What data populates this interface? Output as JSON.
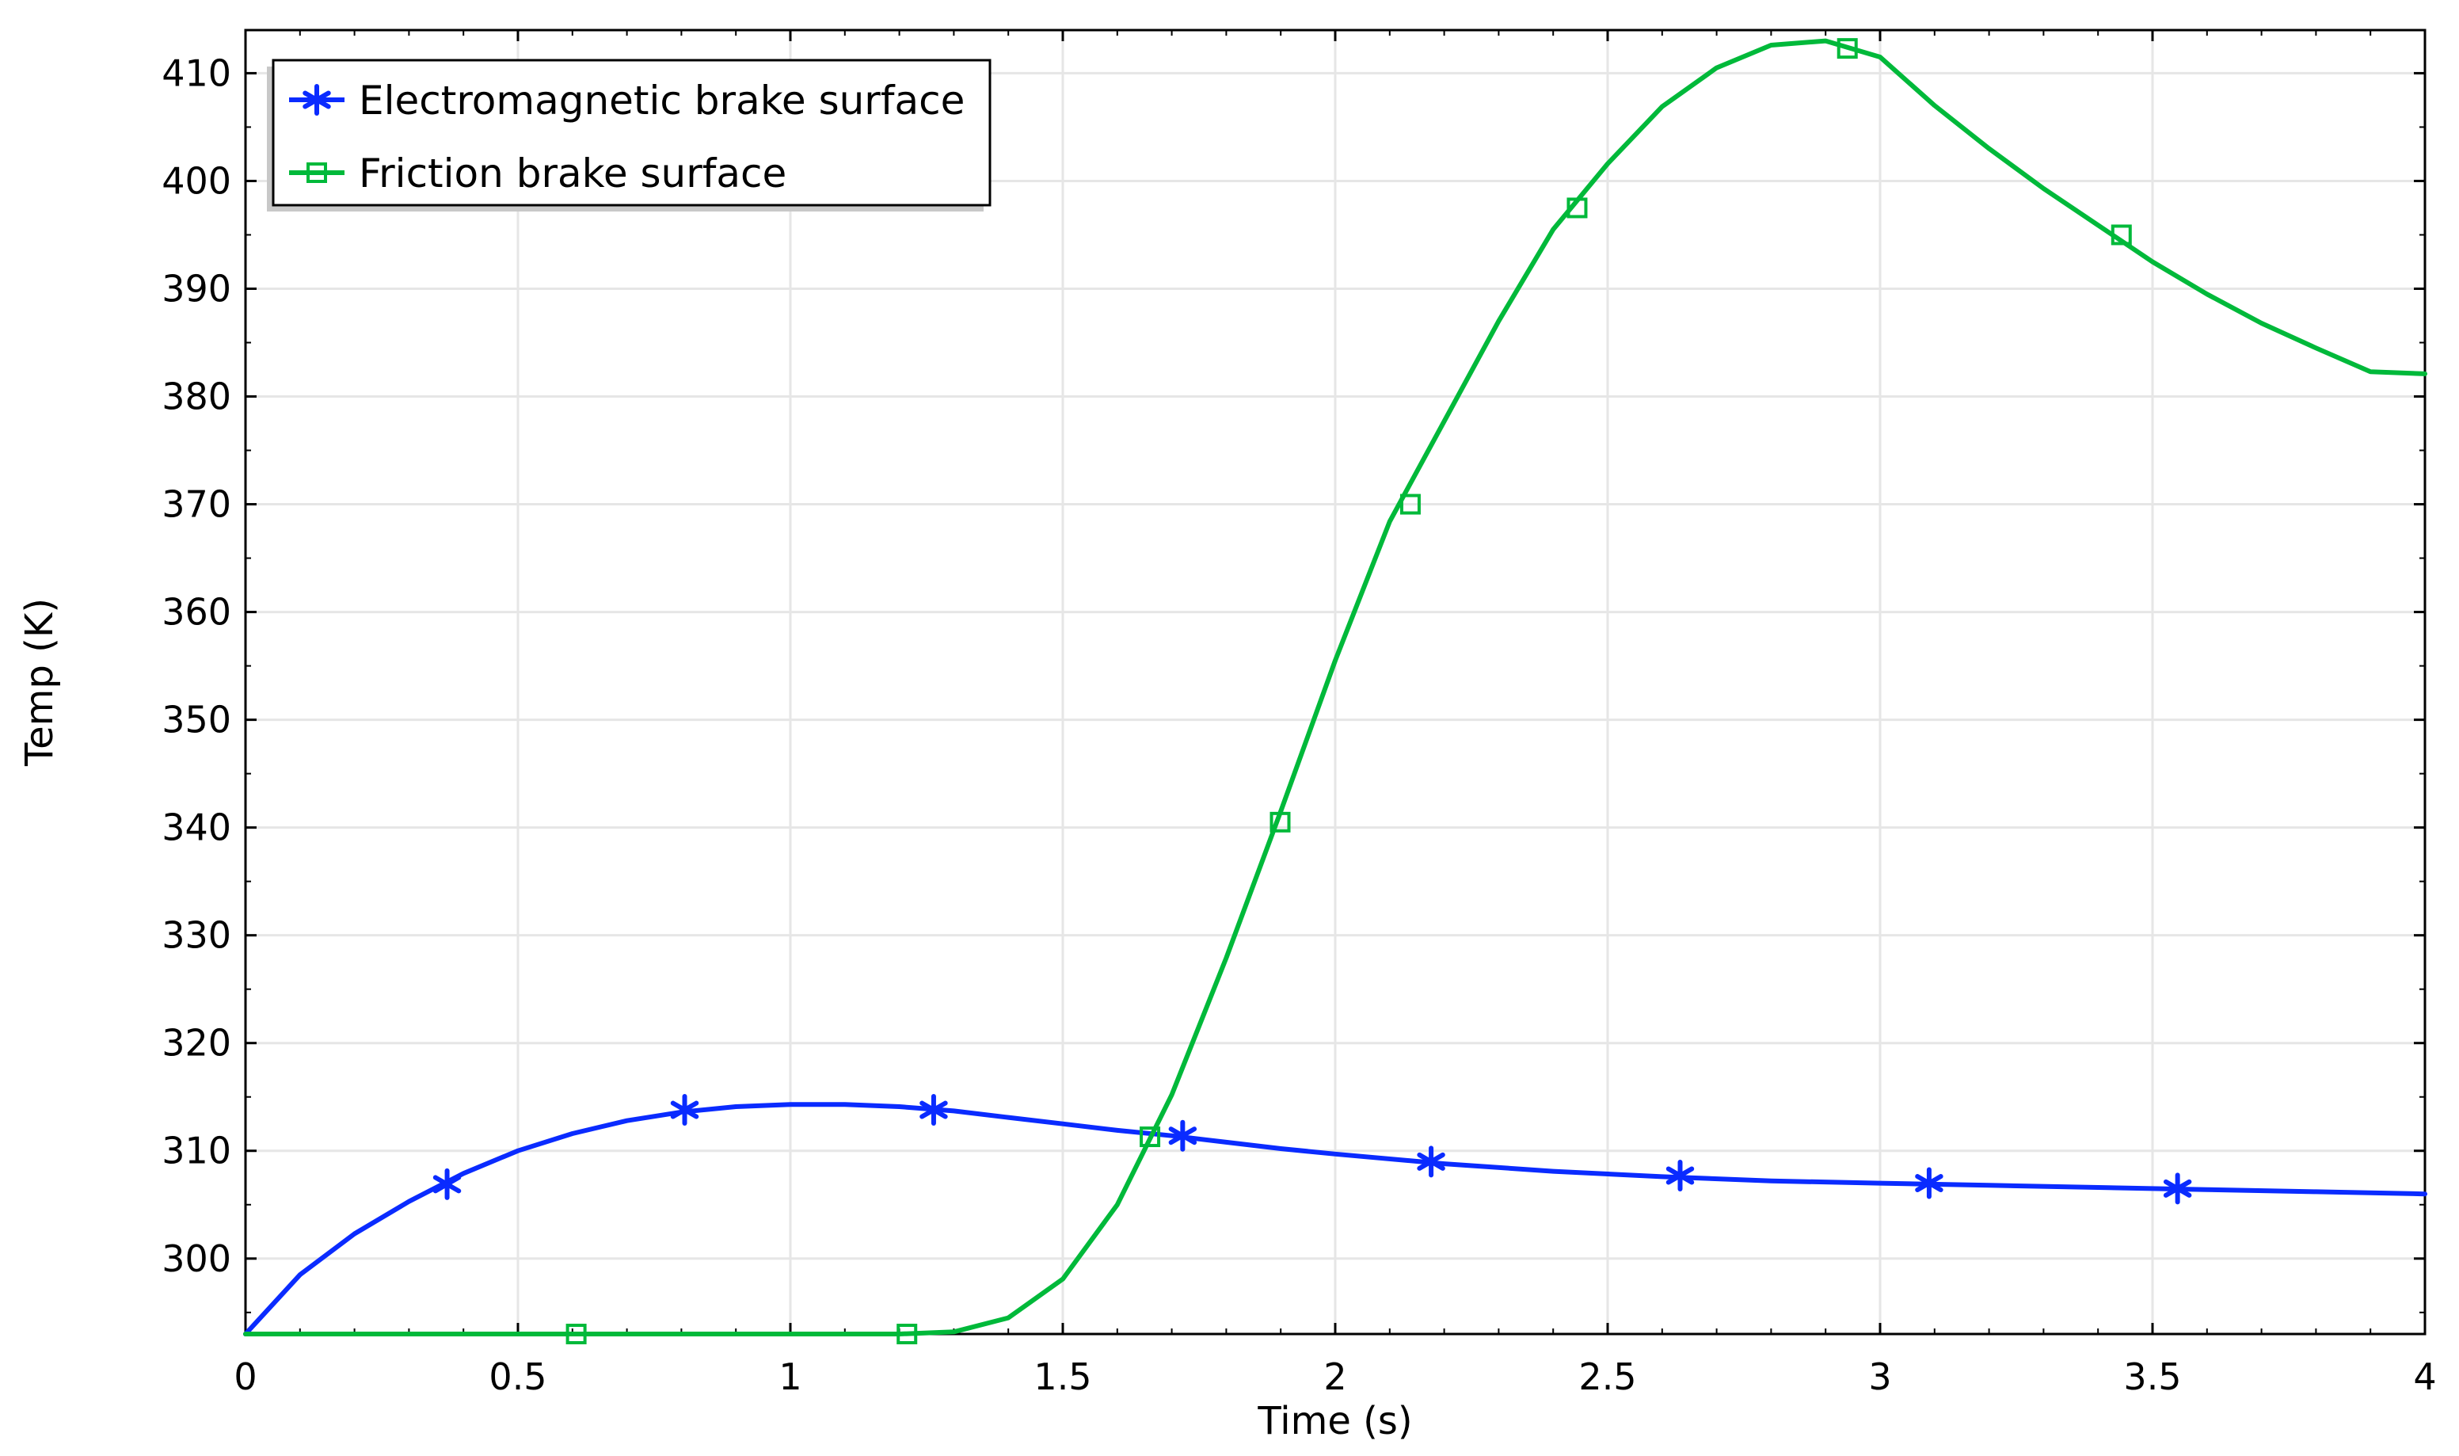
{
  "chart_data": {
    "type": "line",
    "xlabel": "Time (s)",
    "ylabel": "Temp (K)",
    "xlim": [
      0,
      4
    ],
    "ylim": [
      293,
      414
    ],
    "x_ticks": [
      "0",
      "0.5",
      "1",
      "1.5",
      "2",
      "2.5",
      "3",
      "3.5",
      "4"
    ],
    "y_ticks": [
      "300",
      "310",
      "320",
      "330",
      "340",
      "350",
      "360",
      "370",
      "380",
      "390",
      "400",
      "410"
    ],
    "grid": true,
    "legend_position": "top-left",
    "series": [
      {
        "name": "Electromagnetic brake surface",
        "color": "#0a2bff",
        "marker": "star",
        "x": [
          0,
          0.1,
          0.2,
          0.3,
          0.4,
          0.5,
          0.6,
          0.7,
          0.8,
          0.9,
          1.0,
          1.1,
          1.2,
          1.3,
          1.4,
          1.5,
          1.6,
          1.7,
          1.8,
          1.9,
          2.0,
          2.2,
          2.4,
          2.6,
          2.8,
          3.0,
          3.2,
          3.4,
          3.6,
          3.8,
          4.0
        ],
        "y": [
          293,
          298.5,
          302.3,
          305.3,
          307.9,
          310.0,
          311.6,
          312.8,
          313.6,
          314.1,
          314.3,
          314.3,
          314.1,
          313.7,
          313.1,
          312.5,
          311.9,
          311.4,
          310.8,
          310.2,
          309.7,
          308.8,
          308.1,
          307.6,
          307.2,
          307.0,
          306.8,
          306.6,
          306.4,
          306.2,
          306.0
        ],
        "marker_x": [
          0.37,
          0.806,
          1.263,
          1.72,
          2.176,
          2.633,
          3.09,
          3.546
        ],
        "marker_y": [
          306.9,
          313.8,
          313.8,
          311.4,
          309.0,
          307.7,
          307.0,
          306.5
        ]
      },
      {
        "name": "Friction brake surface",
        "color": "#00b93a",
        "marker": "square",
        "x": [
          0,
          0.5,
          1.0,
          1.2,
          1.3,
          1.4,
          1.5,
          1.6,
          1.7,
          1.8,
          1.9,
          2.0,
          2.1,
          2.2,
          2.3,
          2.4,
          2.5,
          2.6,
          2.7,
          2.8,
          2.9,
          3.0,
          3.1,
          3.2,
          3.3,
          3.4,
          3.5,
          3.6,
          3.7,
          3.8,
          3.9,
          4.0
        ],
        "y": [
          293,
          293,
          293,
          293,
          293.2,
          294.5,
          298.1,
          305,
          315.2,
          327.9,
          341.5,
          355.5,
          368.4,
          377.7,
          387,
          395.5,
          401.6,
          406.9,
          410.5,
          412.6,
          413,
          411.5,
          407,
          403,
          399.3,
          395.9,
          392.5,
          389.5,
          386.8,
          384.5,
          382.3,
          382.1
        ],
        "marker_x": [
          0.607,
          1.214,
          1.66,
          1.899,
          2.138,
          2.444,
          2.94,
          3.443
        ],
        "marker_y": [
          293,
          293,
          311.3,
          340.5,
          370,
          397.5,
          412.3,
          395
        ]
      }
    ]
  }
}
